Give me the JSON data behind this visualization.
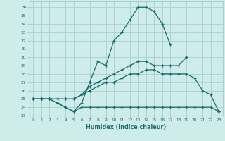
{
  "xlabel": "Humidex (Indice chaleur)",
  "xlim": [
    -0.5,
    23.5
  ],
  "ylim": [
    23,
    36.7
  ],
  "yticks": [
    23,
    24,
    25,
    26,
    27,
    28,
    29,
    30,
    31,
    32,
    33,
    34,
    35,
    36
  ],
  "xticks": [
    0,
    1,
    2,
    3,
    4,
    5,
    6,
    7,
    8,
    9,
    10,
    11,
    12,
    13,
    14,
    15,
    16,
    17,
    18,
    19,
    20,
    21,
    22,
    23
  ],
  "bg_color": "#ceecea",
  "grid_color": "#aacfcd",
  "line_color": "#1a6b6b",
  "lines": [
    {
      "x": [
        0,
        1,
        2,
        3,
        4,
        5,
        6,
        7,
        8,
        9,
        10,
        11,
        12,
        13,
        14,
        15,
        16,
        17,
        18,
        19,
        20,
        21,
        22,
        23
      ],
      "y": [
        25,
        25,
        25,
        24.5,
        24,
        23.5,
        24.5,
        27,
        29.5,
        29,
        32,
        33,
        34.5,
        36,
        36,
        35.5,
        34,
        31.5,
        null,
        30,
        null,
        null,
        null,
        23.5
      ]
    },
    {
      "x": [
        0,
        1,
        2,
        3,
        4,
        5,
        6,
        7,
        8,
        9,
        10,
        11,
        12,
        13,
        14,
        15,
        16,
        17,
        18,
        19,
        20,
        21,
        22,
        23
      ],
      "y": [
        25,
        25,
        25,
        25,
        25,
        25,
        25.5,
        26.5,
        27,
        27.5,
        28,
        28.5,
        29,
        29.5,
        29.5,
        29,
        29,
        29,
        29,
        30,
        null,
        null,
        null,
        23.5
      ]
    },
    {
      "x": [
        0,
        1,
        2,
        3,
        4,
        5,
        6,
        7,
        8,
        9,
        10,
        11,
        12,
        13,
        14,
        15,
        16,
        17,
        18,
        19,
        20,
        21,
        22,
        23
      ],
      "y": [
        25,
        25,
        25,
        25,
        25,
        25,
        25.5,
        26,
        26.5,
        27,
        27,
        27.5,
        28,
        28,
        28.5,
        28.5,
        28,
        28,
        28,
        28,
        27.5,
        26,
        25.5,
        23.5
      ]
    },
    {
      "x": [
        0,
        1,
        2,
        3,
        4,
        5,
        6,
        7,
        8,
        9,
        10,
        11,
        12,
        13,
        14,
        15,
        16,
        17,
        18,
        19,
        20,
        21,
        22,
        23
      ],
      "y": [
        25,
        25,
        25,
        24.5,
        24,
        23.5,
        24,
        24,
        24,
        24,
        24,
        24,
        24,
        24,
        24,
        24,
        24,
        24,
        24,
        24,
        24,
        24,
        24,
        23.5
      ]
    }
  ]
}
